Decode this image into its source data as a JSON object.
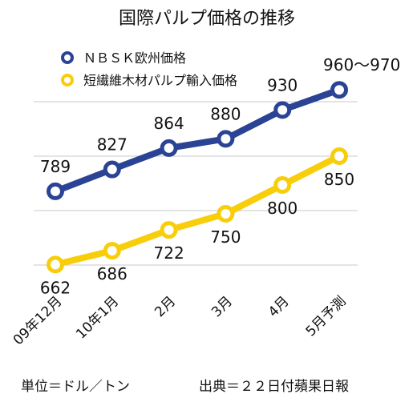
{
  "chart_data": {
    "type": "line",
    "title": "国際パルプ価格の推移",
    "categories": [
      "09年12月",
      "10年1月",
      "2月",
      "3月",
      "4月",
      "5月予測"
    ],
    "series": [
      {
        "name": "ＮＢＳＫ欧州価格",
        "color": "#2b4394",
        "values": [
          789,
          827,
          864,
          880,
          930,
          965
        ],
        "labels": [
          "789",
          "827",
          "864",
          "880",
          "930",
          "960〜970"
        ]
      },
      {
        "name": "短繊維木材パルプ輸入価格",
        "color": "#f8cd0a",
        "values": [
          662,
          686,
          722,
          750,
          800,
          850
        ],
        "labels": [
          "662",
          "686",
          "722",
          "750",
          "800",
          "850"
        ]
      }
    ],
    "ylim": [
      550,
      1050
    ],
    "grid": true,
    "legend": "top-left"
  },
  "footer": {
    "unit": "単位＝ドル／トン",
    "source": "出典＝２２日付蘋果日報"
  }
}
